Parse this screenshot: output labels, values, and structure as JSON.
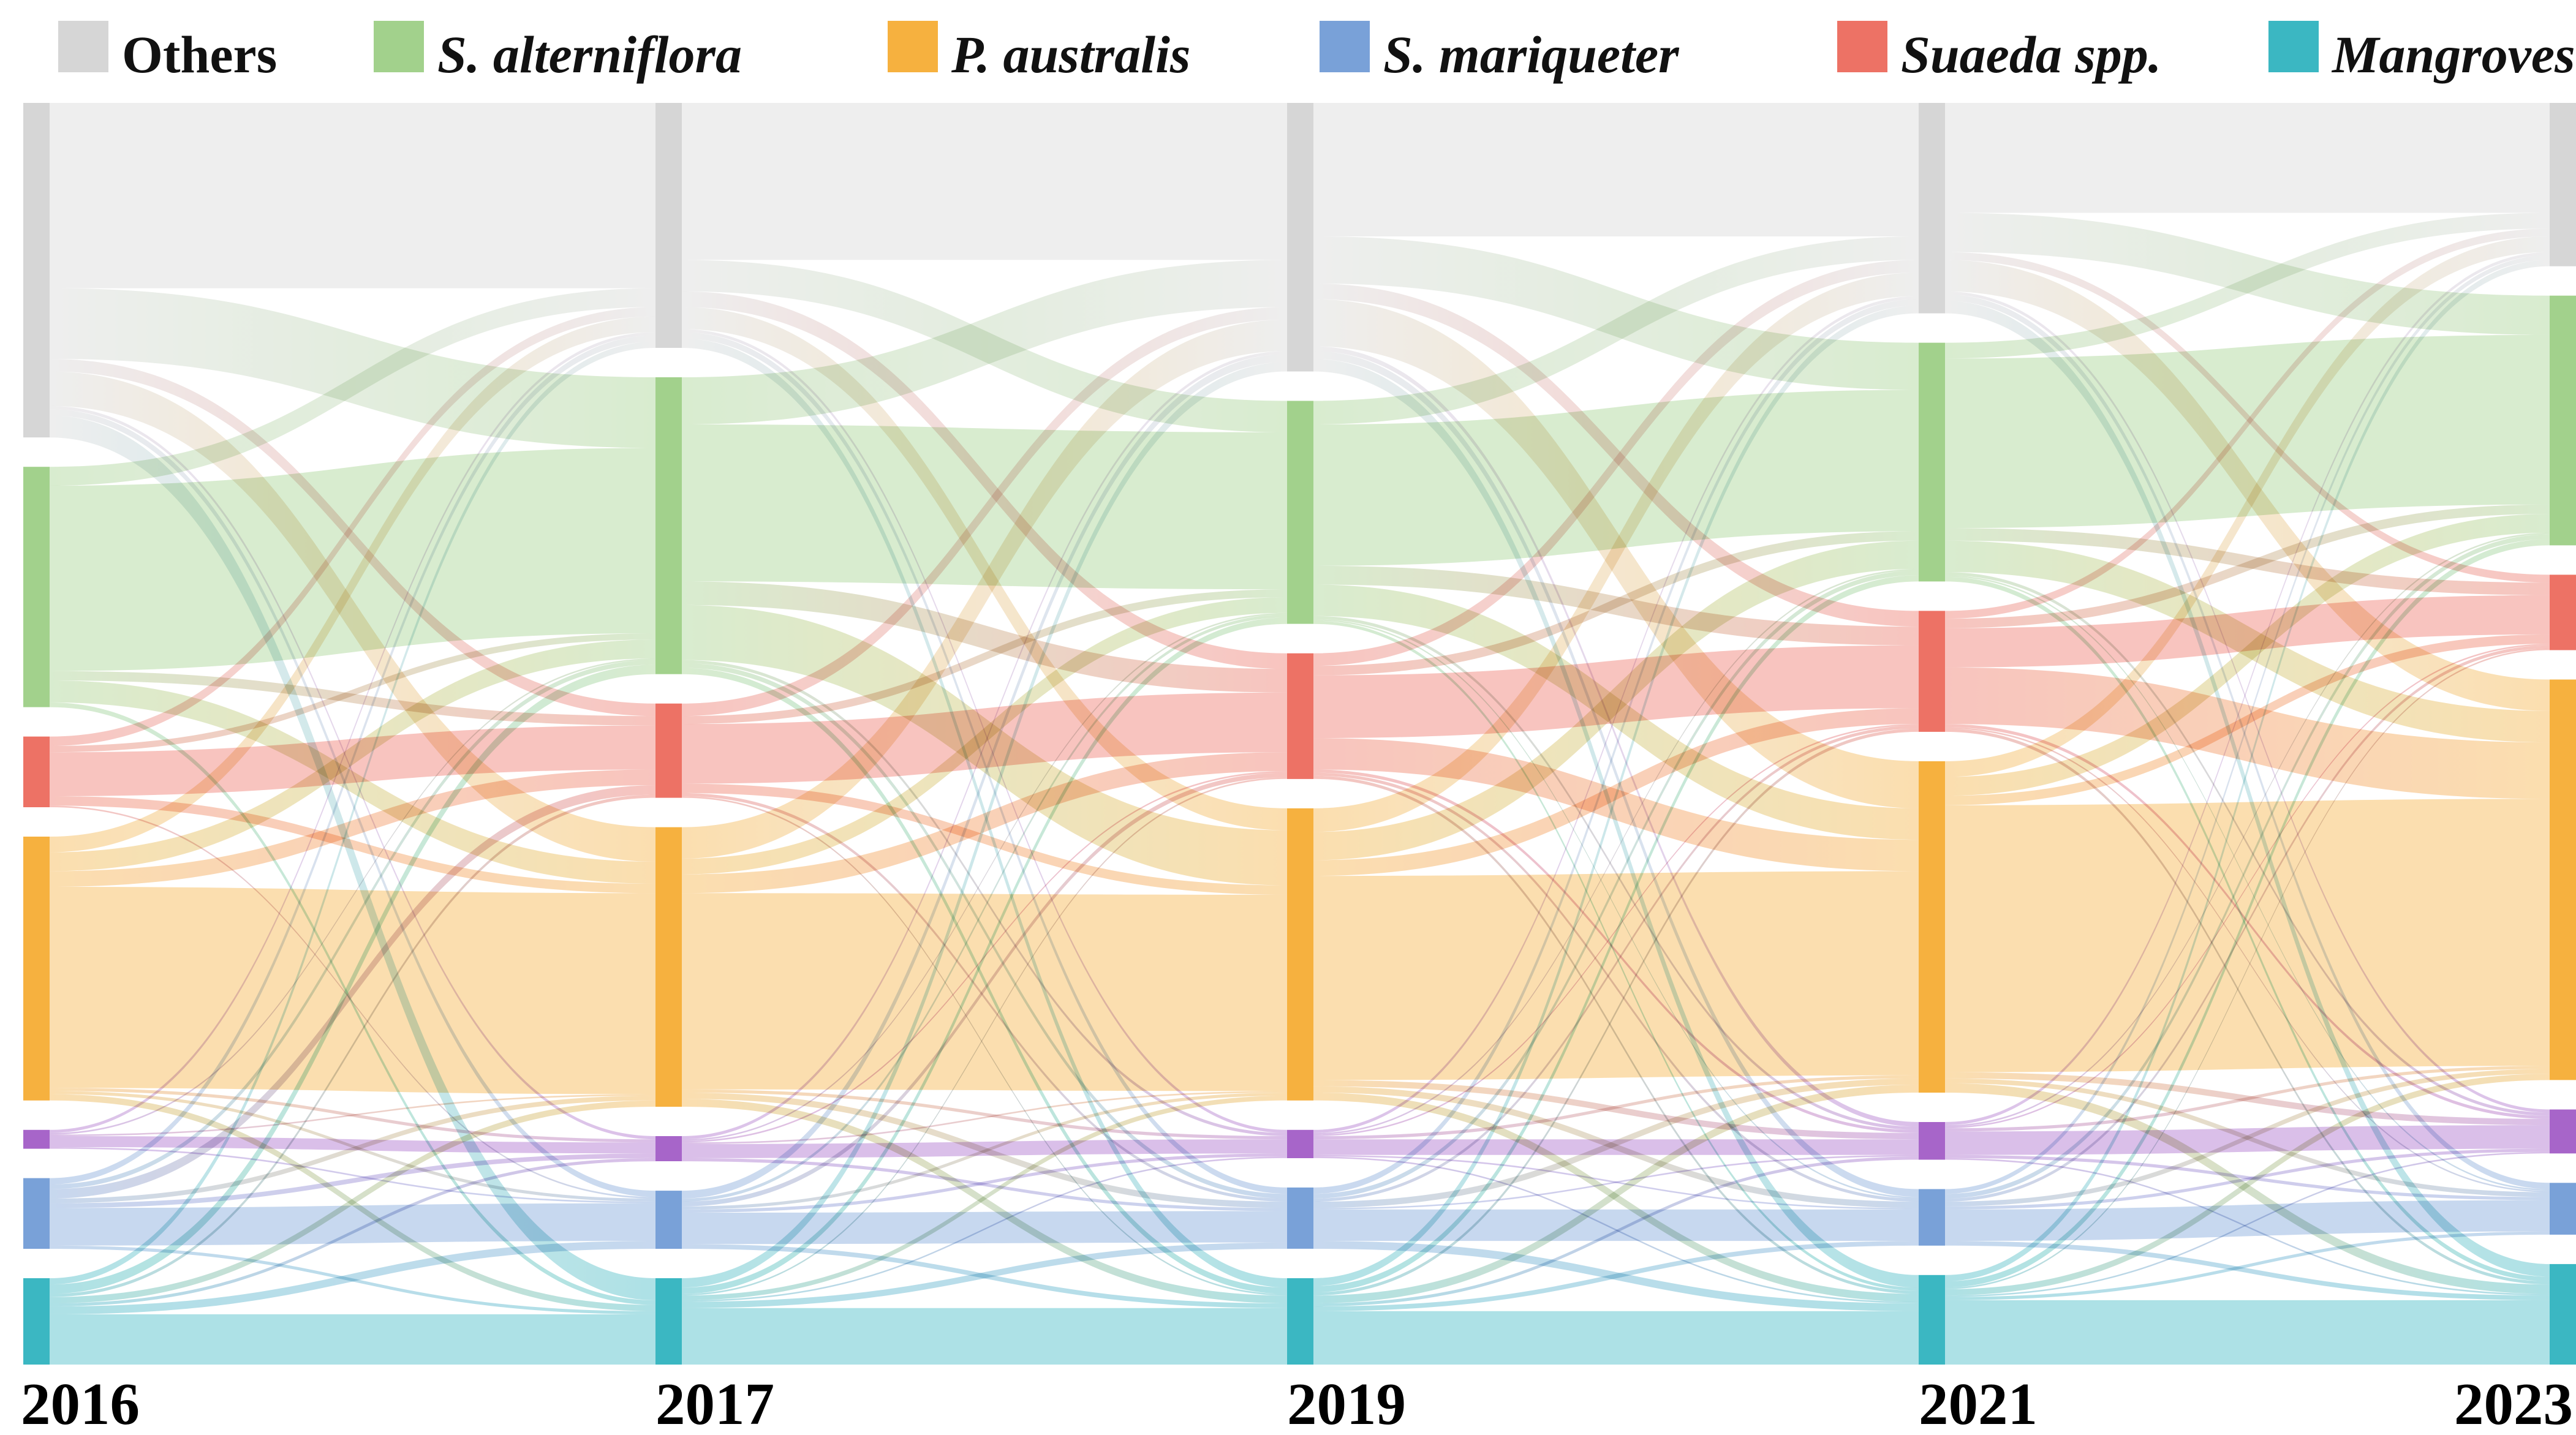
{
  "chart_data": {
    "type": "sankey",
    "title": "",
    "columns": [
      "2016",
      "2017",
      "2019",
      "2021",
      "2023"
    ],
    "legend": [
      {
        "label": "Others",
        "color": "#d6d6d6",
        "italic": false
      },
      {
        "label": "S. alterniflora",
        "color": "#a2d18c",
        "italic": true
      },
      {
        "label": "P. australis",
        "color": "#f6b13f",
        "italic": true
      },
      {
        "label": "S. mariqueter",
        "color": "#79a1d8",
        "italic": true
      },
      {
        "label": "Suaeda spp.",
        "color": "#ed7265",
        "italic": true
      },
      {
        "label": "Mangroves",
        "color": "#3bb7c2",
        "italic": true
      }
    ],
    "nodes": [
      {
        "id": "others",
        "label": "Others",
        "color": "#d6d6d6"
      },
      {
        "id": "s-alterniflora",
        "label": "S. alterniflora",
        "color": "#a2d18c"
      },
      {
        "id": "suaeda-spp",
        "label": "Suaeda spp.",
        "color": "#ed7265"
      },
      {
        "id": "p-australis",
        "label": "P. australis",
        "color": "#f6b13f"
      },
      {
        "id": "unlabeled-purple",
        "label": "",
        "color": "#a765c9"
      },
      {
        "id": "s-mariqueter",
        "label": "S. mariqueter",
        "color": "#79a1d8"
      },
      {
        "id": "mangroves",
        "label": "Mangroves",
        "color": "#3bb7c2"
      }
    ],
    "node_order_note": "top-to-bottom in every column: others, s-alterniflora, suaeda-spp, p-australis, unlabeled-purple, s-mariqueter, mangroves",
    "transitions": [
      {
        "from": "2016",
        "to": "2017",
        "matrix": [
          [
            118,
            45,
            8,
            22,
            2,
            4,
            14
          ],
          [
            12,
            118,
            6,
            14,
            0,
            0,
            3
          ],
          [
            6,
            4,
            28,
            6,
            0,
            1,
            0
          ],
          [
            10,
            12,
            10,
            128,
            2,
            2,
            4
          ],
          [
            2,
            1,
            0,
            1,
            7,
            1,
            0
          ],
          [
            4,
            3,
            6,
            3,
            3,
            24,
            2
          ],
          [
            4,
            6,
            2,
            4,
            2,
            5,
            32
          ]
        ]
      },
      {
        "from": "2017",
        "to": "2019",
        "matrix": [
          [
            100,
            20,
            10,
            14,
            2,
            4,
            6
          ],
          [
            30,
            100,
            15,
            35,
            2,
            3,
            4
          ],
          [
            8,
            5,
            38,
            6,
            0,
            2,
            1
          ],
          [
            20,
            10,
            12,
            125,
            2,
            4,
            5
          ],
          [
            2,
            1,
            1,
            1,
            9,
            2,
            0
          ],
          [
            5,
            2,
            3,
            2,
            2,
            20,
            3
          ],
          [
            6,
            4,
            1,
            3,
            1,
            4,
            36
          ]
        ]
      },
      {
        "from": "2019",
        "to": "2021",
        "matrix": [
          [
            85,
            30,
            10,
            30,
            3,
            5,
            8
          ],
          [
            15,
            90,
            12,
            20,
            2,
            1,
            2
          ],
          [
            8,
            6,
            40,
            20,
            2,
            2,
            2
          ],
          [
            15,
            18,
            10,
            130,
            4,
            4,
            5
          ],
          [
            2,
            1,
            1,
            2,
            10,
            1,
            1
          ],
          [
            4,
            3,
            2,
            4,
            1,
            20,
            5
          ],
          [
            5,
            4,
            2,
            5,
            2,
            3,
            34
          ]
        ]
      },
      {
        "from": "2021",
        "to": "2023",
        "matrix": [
          [
            70,
            25,
            5,
            20,
            2,
            4,
            8
          ],
          [
            10,
            108,
            8,
            20,
            2,
            1,
            3
          ],
          [
            5,
            6,
            25,
            36,
            2,
            1,
            2
          ],
          [
            10,
            12,
            6,
            170,
            4,
            3,
            6
          ],
          [
            2,
            1,
            1,
            2,
            15,
            2,
            1
          ],
          [
            3,
            3,
            2,
            3,
            2,
            20,
            3
          ],
          [
            4,
            4,
            1,
            4,
            1,
            2,
            41
          ]
        ]
      }
    ],
    "layout_hints": {
      "legend_position": "top",
      "grid": false,
      "axis": "years along bottom",
      "flow_style": "source-to-target gradient ribbons, semi-transparent"
    }
  }
}
